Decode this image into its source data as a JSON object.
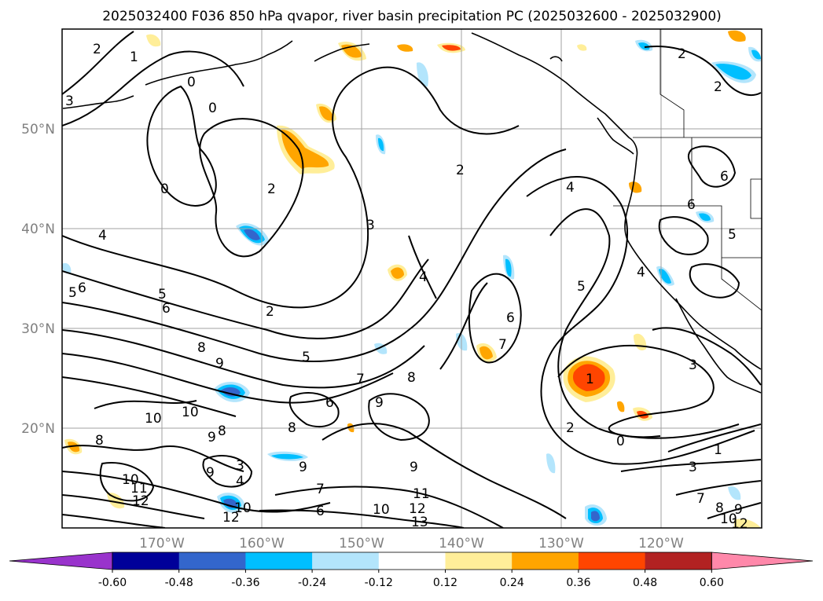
{
  "title": "2025032400 F036 850 hPa qvapor, river basin precipitation PC (2025032600 - 2025032900)",
  "map": {
    "lat_labels": [
      "50°N",
      "40°N",
      "30°N",
      "20°N"
    ],
    "lon_labels": [
      "170°W",
      "160°W",
      "150°W",
      "140°W",
      "130°W",
      "120°W"
    ],
    "gridlines": true
  },
  "contour_labels": [
    "2",
    "1",
    "0",
    "0",
    "3",
    "2",
    "0",
    "2",
    "3",
    "4",
    "4",
    "5",
    "6",
    "5",
    "6",
    "2",
    "8",
    "9",
    "10",
    "10",
    "9",
    "8",
    "8",
    "3",
    "4",
    "9",
    "10",
    "11",
    "12",
    "10",
    "12",
    "13",
    "11",
    "12",
    "10",
    "9",
    "7",
    "6",
    "9",
    "8",
    "6",
    "7",
    "9",
    "8",
    "5",
    "7",
    "5",
    "6",
    "6",
    "6",
    "5",
    "4",
    "2",
    "0",
    "1",
    "3",
    "1",
    "2",
    "4",
    "3",
    "2",
    "7",
    "8",
    "9",
    "10",
    "12"
  ],
  "colorbar": {
    "labels": [
      "-0.60",
      "-0.48",
      "-0.36",
      "-0.24",
      "-0.12",
      "0.12",
      "0.24",
      "0.36",
      "0.48",
      "0.60"
    ],
    "colors": [
      "#9933cc",
      "#000099",
      "#3366cc",
      "#00bfff",
      "#b3e5fc",
      "#ffffff",
      "#ffee99",
      "#ffa500",
      "#ff4500",
      "#b22222",
      "#ff88aa"
    ]
  },
  "colors": {
    "blue_low": "#3366cc",
    "blue_mid": "#00bfff",
    "blue_light": "#b3e5fc",
    "yellow": "#ffee99",
    "orange": "#ffa500",
    "red": "#ff4500"
  }
}
